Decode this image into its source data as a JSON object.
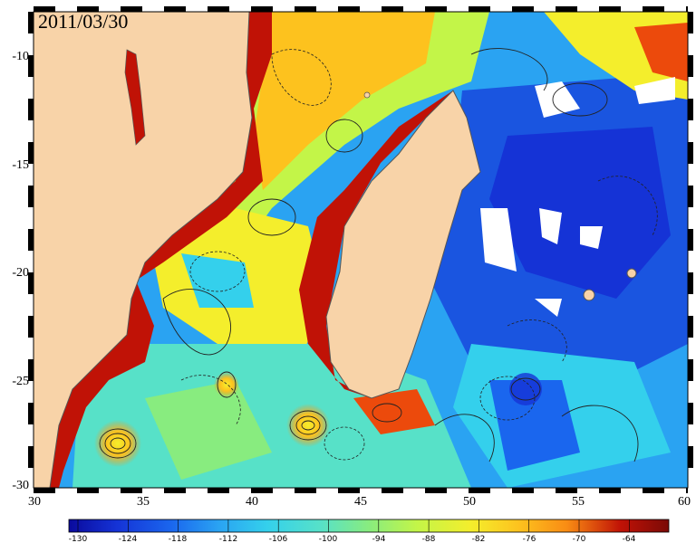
{
  "date": "2011/03/30",
  "map": {
    "lon_range": [
      30,
      60
    ],
    "lat_range": [
      -30.4,
      -8.4
    ],
    "x_ticks": [
      "30",
      "35",
      "40",
      "45",
      "50",
      "55",
      "60"
    ],
    "y_ticks": [
      "-10",
      "-15",
      "-20",
      "-25",
      "-30"
    ],
    "land_color": "#f8d3a8",
    "colormap": [
      "#0a0a9c",
      "#1533d6",
      "#1a66ee",
      "#2aa3f2",
      "#34d0ec",
      "#57e1c8",
      "#88ec7f",
      "#c3f548",
      "#f4ee2c",
      "#fdc21e",
      "#f98c14",
      "#ec4a0c",
      "#c01206",
      "#7a0a06"
    ]
  },
  "colorbar": {
    "range": [
      -130,
      -58
    ],
    "ticks": [
      "-130",
      "-124",
      "-118",
      "-112",
      "-106",
      "-100",
      "-94",
      "-88",
      "-82",
      "-76",
      "-70",
      "-64"
    ]
  }
}
